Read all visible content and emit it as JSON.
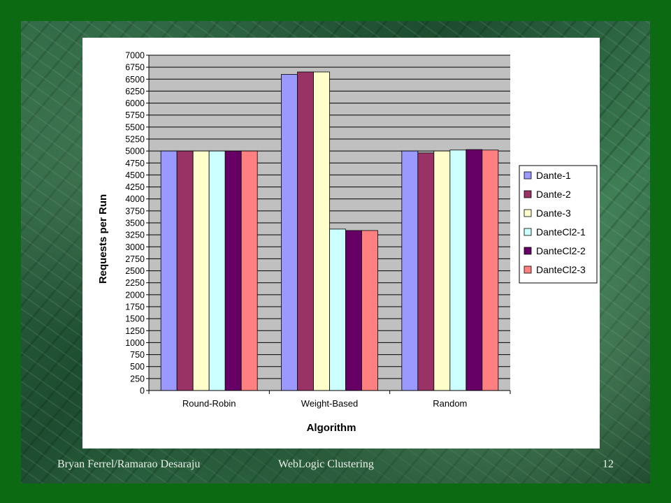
{
  "footer": {
    "left": "Bryan Ferrel/Ramarao Desaraju",
    "center": "WebLogic Clustering",
    "right": "12"
  },
  "chart_data": {
    "type": "bar",
    "title": "",
    "xlabel": "Algorithm",
    "ylabel": "Requests per Run",
    "ylim": [
      0,
      7000
    ],
    "ytick_step": 250,
    "grid": true,
    "legend_position": "right",
    "categories": [
      "Round-Robin",
      "Weight-Based",
      "Random"
    ],
    "series": [
      {
        "name": "Dante-1",
        "color": "#9999ff",
        "values": [
          5000,
          6600,
          5000
        ]
      },
      {
        "name": "Dante-2",
        "color": "#993366",
        "values": [
          5000,
          6650,
          4960
        ]
      },
      {
        "name": "Dante-3",
        "color": "#ffffcc",
        "values": [
          5000,
          6650,
          5000
        ]
      },
      {
        "name": "DanteCl2-1",
        "color": "#ccffff",
        "values": [
          5000,
          3370,
          5020
        ]
      },
      {
        "name": "DanteCl2-2",
        "color": "#660066",
        "values": [
          5000,
          3340,
          5030
        ]
      },
      {
        "name": "DanteCl2-3",
        "color": "#ff8080",
        "values": [
          5000,
          3340,
          5020
        ]
      }
    ],
    "plot_background": "#c0c0c0"
  }
}
